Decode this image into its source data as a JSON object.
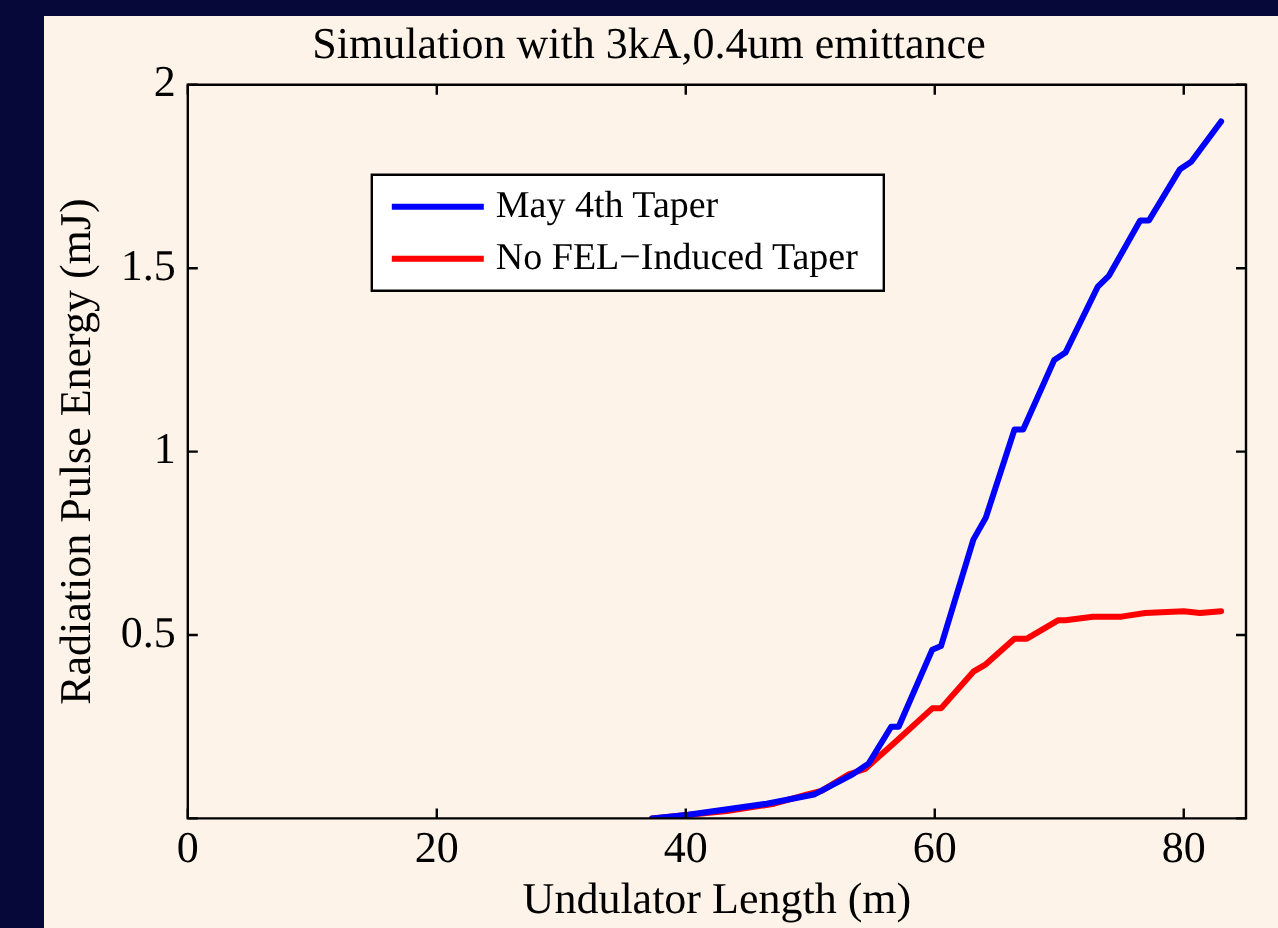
{
  "chart_data": {
    "type": "line",
    "title": "Simulation with 3kA,0.4um emittance",
    "xlabel": "Undulator Length (m)",
    "ylabel": "Radiation Pulse Energy (mJ)",
    "xlim": [
      0,
      85
    ],
    "ylim": [
      0,
      2
    ],
    "xticks": [
      0,
      20,
      40,
      60,
      80
    ],
    "yticks": [
      {
        "value": 0,
        "label": null
      },
      0.5,
      1,
      1.5,
      2
    ],
    "grid": false,
    "legend": "top left",
    "marker": "none",
    "line_style": "solid",
    "series": [
      {
        "name": "May 4th Taper",
        "color": "#0000ff",
        "x": [
          37.3,
          40.2,
          46.5,
          50.3,
          53.4,
          54.7,
          56.5,
          57.1,
          59.8,
          60.5,
          63.1,
          64.1,
          66.4,
          67.1,
          69.6,
          70.5,
          73.1,
          74.0,
          76.5,
          77.2,
          79.7,
          80.6,
          83.0
        ],
        "values": [
          0,
          0.01,
          0.04,
          0.065,
          0.12,
          0.15,
          0.25,
          0.25,
          0.46,
          0.47,
          0.76,
          0.82,
          1.06,
          1.06,
          1.25,
          1.27,
          1.45,
          1.48,
          1.63,
          1.63,
          1.77,
          1.79,
          1.9
        ]
      },
      {
        "name": "No FEL−Induced Taper",
        "color": "#ff0000",
        "x": [
          37.3,
          43.3,
          47.1,
          49.7,
          50.9,
          53.1,
          54.4,
          56.9,
          59.8,
          60.5,
          63.1,
          64.1,
          66.4,
          67.4,
          69.9,
          70.5,
          72.7,
          75.0,
          76.9,
          80.0,
          81.3,
          83.0
        ],
        "values": [
          0,
          0.02,
          0.04,
          0.065,
          0.075,
          0.12,
          0.135,
          0.21,
          0.3,
          0.3,
          0.4,
          0.42,
          0.49,
          0.49,
          0.54,
          0.54,
          0.55,
          0.55,
          0.56,
          0.565,
          0.56,
          0.565
        ]
      }
    ]
  }
}
